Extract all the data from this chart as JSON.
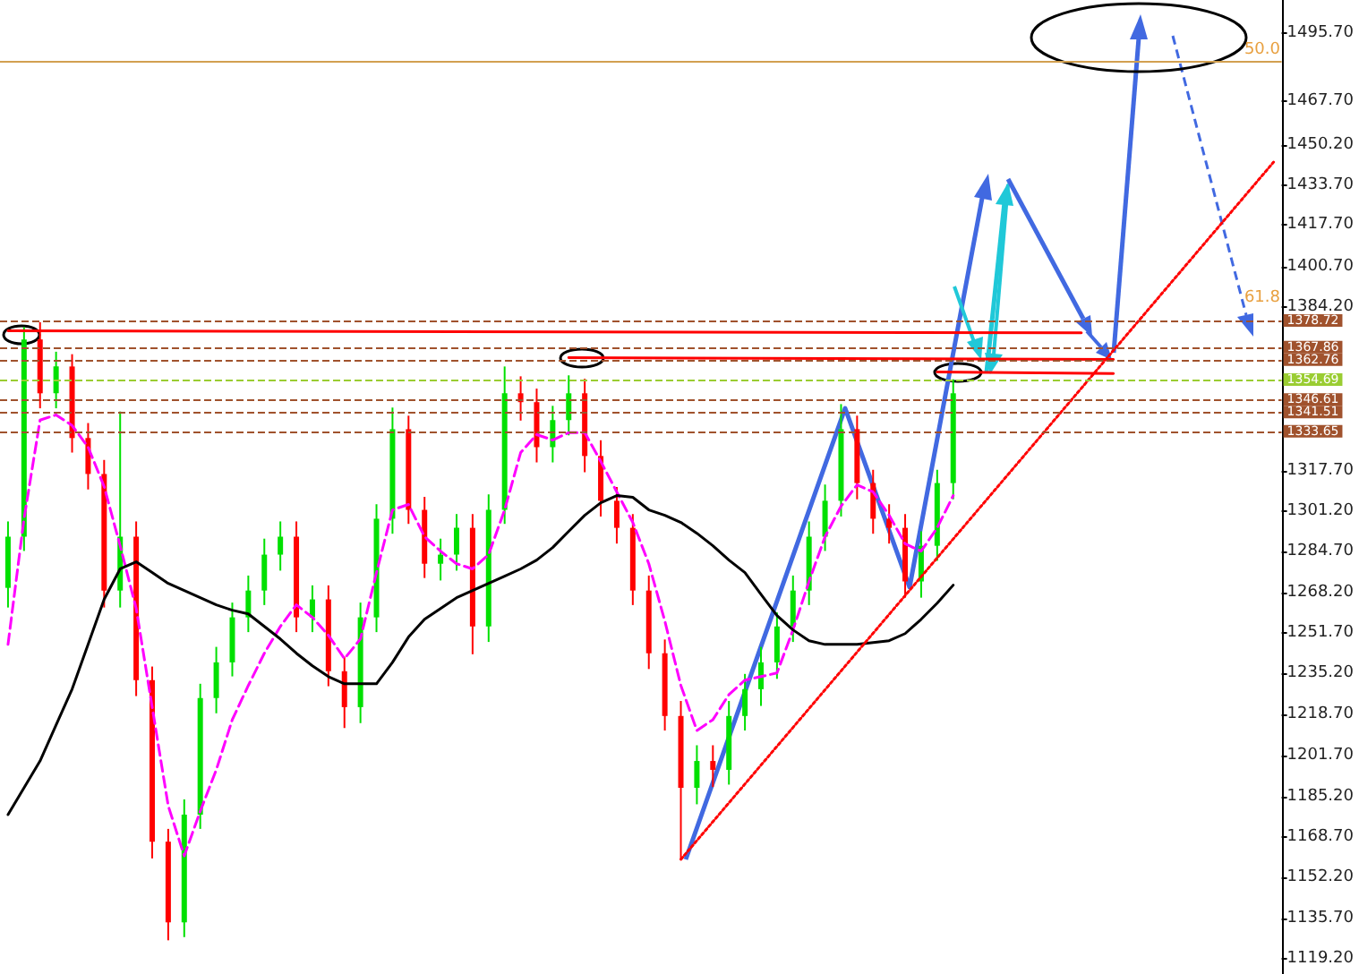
{
  "chart_data": {
    "type": "candlestick",
    "tick_labels": "y",
    "grid": false,
    "categories": [
      null,
      null,
      null,
      null,
      null,
      null,
      null,
      null,
      null,
      null,
      null,
      null,
      null,
      null,
      null,
      null,
      null,
      null,
      null,
      null,
      null,
      null,
      null,
      null,
      null,
      null,
      null,
      null,
      null,
      null,
      null,
      null,
      null,
      null,
      null,
      null,
      null,
      null,
      null,
      null,
      null,
      null,
      null,
      null,
      null,
      null,
      null,
      null,
      null,
      null,
      null,
      null,
      null,
      null,
      null,
      null,
      null,
      null,
      null,
      null,
      null,
      null,
      null,
      null,
      null,
      null,
      null,
      null,
      null,
      null,
      null,
      null,
      null,
      null,
      null,
      null,
      null,
      null,
      null,
      null
    ],
    "ohlc": [
      [
        1270.0,
        1297.0,
        1262.0,
        1290.8
      ],
      [
        1290.8,
        1376.0,
        1285.0,
        1371.0
      ],
      [
        1371.0,
        1378.0,
        1343.0,
        1349.1
      ],
      [
        1349.1,
        1366.0,
        1343.0,
        1360.0
      ],
      [
        1360.0,
        1365.0,
        1325.0,
        1330.9
      ],
      [
        1330.9,
        1337.0,
        1310.0,
        1316.3
      ],
      [
        1316.3,
        1322.0,
        1262.0,
        1268.9
      ],
      [
        1268.9,
        1341.7,
        1262.0,
        1290.8
      ],
      [
        1290.8,
        1297.0,
        1226.0,
        1232.5
      ],
      [
        1232.5,
        1238.0,
        1160.0,
        1166.8
      ],
      [
        1166.8,
        1172.0,
        1126.7,
        1134.0
      ],
      [
        1134.0,
        1184.0,
        1128.0,
        1177.8
      ],
      [
        1177.8,
        1231.0,
        1172.0,
        1225.2
      ],
      [
        1225.2,
        1246.0,
        1219.0,
        1239.7
      ],
      [
        1239.7,
        1264.0,
        1234.0,
        1258.0
      ],
      [
        1258.0,
        1275.0,
        1252.0,
        1268.9
      ],
      [
        1268.9,
        1290.0,
        1263.0,
        1283.5
      ],
      [
        1283.5,
        1297.0,
        1277.0,
        1290.8
      ],
      [
        1290.8,
        1297.0,
        1252.0,
        1258.0
      ],
      [
        1258.0,
        1271.0,
        1252.0,
        1265.3
      ],
      [
        1265.3,
        1271.0,
        1230.0,
        1236.1
      ],
      [
        1236.1,
        1242.0,
        1213.0,
        1221.5
      ],
      [
        1221.5,
        1264.0,
        1215.0,
        1258.0
      ],
      [
        1258.0,
        1304.0,
        1252.0,
        1298.1
      ],
      [
        1298.1,
        1343.3,
        1292.0,
        1334.5
      ],
      [
        1334.5,
        1340.0,
        1296.0,
        1301.7
      ],
      [
        1301.7,
        1307.0,
        1274.0,
        1279.8
      ],
      [
        1279.8,
        1290.0,
        1273.0,
        1283.5
      ],
      [
        1283.5,
        1300.0,
        1277.0,
        1294.4
      ],
      [
        1294.4,
        1300.0,
        1243.0,
        1254.3
      ],
      [
        1254.3,
        1308.0,
        1248.0,
        1301.7
      ],
      [
        1301.7,
        1360.0,
        1296.0,
        1349.1
      ],
      [
        1349.1,
        1356.0,
        1338.0,
        1345.5
      ],
      [
        1345.5,
        1351.0,
        1321.0,
        1327.2
      ],
      [
        1327.2,
        1344.0,
        1321.0,
        1338.2
      ],
      [
        1338.2,
        1356.4,
        1332.0,
        1349.1
      ],
      [
        1349.1,
        1355.0,
        1317.0,
        1323.6
      ],
      [
        1323.6,
        1330.0,
        1299.0,
        1305.4
      ],
      [
        1305.4,
        1311.0,
        1288.0,
        1294.4
      ],
      [
        1294.4,
        1300.0,
        1263.0,
        1268.9
      ],
      [
        1268.9,
        1275.0,
        1237.0,
        1243.4
      ],
      [
        1243.4,
        1249.0,
        1212.0,
        1217.9
      ],
      [
        1217.9,
        1224.0,
        1159.6,
        1188.7
      ],
      [
        1188.7,
        1206.0,
        1182.0,
        1199.6
      ],
      [
        1199.6,
        1206.0,
        1189.0,
        1196.0
      ],
      [
        1196.0,
        1224.0,
        1190.0,
        1217.9
      ],
      [
        1217.9,
        1235.0,
        1212.0,
        1228.8
      ],
      [
        1228.8,
        1246.0,
        1222.0,
        1239.7
      ],
      [
        1239.7,
        1260.0,
        1233.0,
        1254.3
      ],
      [
        1254.3,
        1275.0,
        1248.0,
        1268.9
      ],
      [
        1268.9,
        1297.0,
        1263.0,
        1290.8
      ],
      [
        1290.8,
        1312.0,
        1285.0,
        1305.4
      ],
      [
        1305.4,
        1344.7,
        1299.0,
        1334.5
      ],
      [
        1334.5,
        1340.0,
        1306.0,
        1312.6
      ],
      [
        1312.6,
        1318.0,
        1292.0,
        1298.1
      ],
      [
        1298.1,
        1304.0,
        1288.0,
        1294.4
      ],
      [
        1294.4,
        1300.0,
        1266.0,
        1272.6
      ],
      [
        1272.6,
        1293.0,
        1266.0,
        1287.1
      ],
      [
        1287.1,
        1318.0,
        1281.0,
        1312.6
      ],
      [
        1312.6,
        1354.8,
        1306.0,
        1349.1
      ],
      null,
      null,
      null,
      null,
      null,
      null,
      null,
      null,
      null,
      null,
      null,
      null,
      null,
      null,
      null,
      null,
      null,
      null,
      null,
      null
    ],
    "series": [
      {
        "type": "line",
        "color": "#ff00ff",
        "line_style": "dashed",
        "values": [
          1247.0,
          1298.1,
          1338.2,
          1340.3,
          1336.0,
          1327.2,
          1311.2,
          1287.1,
          1261.6,
          1221.5,
          1181.4,
          1161.0,
          1179.2,
          1196.0,
          1216.4,
          1230.3,
          1243.4,
          1254.3,
          1263.1,
          1258.0,
          1250.7,
          1241.2,
          1249.2,
          1276.2,
          1301.7,
          1303.9,
          1290.8,
          1284.9,
          1279.8,
          1277.7,
          1283.5,
          1301.7,
          1325.0,
          1332.3,
          1330.1,
          1333.1,
          1333.1,
          1321.4,
          1309.0,
          1296.6,
          1279.8,
          1256.5,
          1230.3,
          1212.0,
          1216.4,
          1226.6,
          1232.5,
          1233.9,
          1235.4,
          1252.9,
          1272.6,
          1290.8,
          1303.2,
          1311.9,
          1309.0,
          1299.5,
          1287.9,
          1284.9,
          1294.4,
          1307.5,
          null,
          null,
          null,
          null,
          null,
          null,
          null,
          null,
          null,
          null,
          null,
          null,
          null,
          null,
          null,
          null,
          null,
          null,
          null,
          null
        ]
      },
      {
        "type": "line",
        "color": "#000000",
        "line_style": "solid",
        "values": [
          1177.8,
          1188.7,
          1199.6,
          1214.2,
          1228.8,
          1247.0,
          1265.3,
          1277.7,
          1280.6,
          1276.2,
          1271.8,
          1268.9,
          1266.0,
          1263.1,
          1260.9,
          1259.4,
          1254.3,
          1249.2,
          1243.4,
          1238.3,
          1233.9,
          1231.0,
          1231.0,
          1231.0,
          1239.7,
          1250.0,
          1257.2,
          1261.6,
          1266.0,
          1268.9,
          1271.8,
          1274.7,
          1277.7,
          1281.3,
          1286.4,
          1293.0,
          1299.5,
          1304.6,
          1307.5,
          1306.8,
          1301.7,
          1299.5,
          1296.6,
          1292.2,
          1287.1,
          1281.3,
          1276.2,
          1267.4,
          1258.7,
          1252.9,
          1248.5,
          1247.0,
          1247.0,
          1247.0,
          1247.8,
          1248.5,
          1251.4,
          1257.2,
          1263.8,
          1271.1,
          null,
          null,
          null,
          null,
          null,
          null,
          null,
          null,
          null,
          null,
          null,
          null,
          null,
          null,
          null,
          null,
          null,
          null,
          null,
          null
        ]
      },
      {
        "type": "line",
        "color": "#ff0000",
        "line_style": "solid",
        "values": [
          1374.5,
          null,
          null,
          null,
          null,
          null,
          null,
          null,
          null,
          null,
          null,
          null,
          null,
          null,
          null,
          null,
          null,
          null,
          null,
          null,
          null,
          null,
          null,
          null,
          null,
          null,
          null,
          null,
          null,
          null,
          null,
          null,
          null,
          null,
          null,
          null,
          null,
          null,
          null,
          null,
          null,
          null,
          null,
          null,
          null,
          null,
          null,
          null,
          null,
          null,
          null,
          null,
          null,
          null,
          null,
          null,
          null,
          null,
          null,
          null,
          null,
          null,
          null,
          null,
          null,
          null,
          null,
          1373.7,
          null,
          null,
          null,
          null,
          null,
          null,
          null,
          null,
          null,
          null,
          null,
          null
        ]
      },
      {
        "type": "line",
        "color": "#ff0000",
        "line_style": "solid",
        "values": [
          null,
          null,
          null,
          null,
          null,
          null,
          null,
          null,
          null,
          null,
          null,
          null,
          null,
          null,
          null,
          null,
          null,
          null,
          null,
          null,
          null,
          null,
          null,
          null,
          null,
          null,
          null,
          null,
          null,
          null,
          null,
          null,
          null,
          null,
          null,
          1363.6,
          null,
          null,
          null,
          null,
          null,
          null,
          null,
          null,
          null,
          null,
          null,
          null,
          null,
          null,
          null,
          null,
          null,
          null,
          null,
          null,
          null,
          null,
          null,
          null,
          null,
          null,
          null,
          null,
          null,
          null,
          null,
          null,
          null,
          1362.9,
          null,
          null,
          null,
          null,
          null,
          null,
          null,
          null,
          null,
          null
        ]
      },
      {
        "type": "line",
        "color": "#ff0000",
        "line_style": "solid",
        "values": [
          null,
          null,
          null,
          null,
          null,
          null,
          null,
          null,
          null,
          null,
          null,
          null,
          null,
          null,
          null,
          null,
          null,
          null,
          null,
          null,
          null,
          null,
          null,
          null,
          null,
          null,
          null,
          null,
          null,
          null,
          null,
          null,
          null,
          null,
          null,
          null,
          null,
          null,
          null,
          null,
          null,
          null,
          null,
          null,
          null,
          null,
          null,
          null,
          null,
          null,
          null,
          null,
          null,
          null,
          null,
          null,
          null,
          null,
          1357.8,
          null,
          null,
          null,
          null,
          null,
          null,
          null,
          null,
          null,
          null,
          1357.1,
          null,
          null,
          null,
          null,
          null,
          null,
          null,
          null,
          null,
          null
        ]
      },
      {
        "type": "line",
        "color": "#ff0000",
        "line_style": "dotted",
        "values": [
          null,
          null,
          null,
          null,
          null,
          null,
          null,
          null,
          null,
          null,
          null,
          null,
          null,
          null,
          null,
          null,
          null,
          null,
          null,
          null,
          null,
          null,
          null,
          null,
          null,
          null,
          null,
          null,
          null,
          null,
          null,
          null,
          null,
          null,
          null,
          null,
          null,
          null,
          null,
          null,
          null,
          null,
          1159.6,
          null,
          null,
          null,
          null,
          null,
          null,
          null,
          null,
          null,
          null,
          null,
          null,
          null,
          null,
          null,
          null,
          null,
          null,
          null,
          null,
          null,
          null,
          null,
          null,
          null,
          null,
          null,
          null,
          null,
          null,
          null,
          null,
          null,
          null,
          null,
          null,
          1443.1
        ]
      }
    ],
    "ylim": [
      1113,
      1509
    ],
    "yticks": [
      {
        "value": 1119.2,
        "label": "1119.20"
      },
      {
        "value": 1135.7,
        "label": "1135.70"
      },
      {
        "value": 1152.2,
        "label": "1152.20"
      },
      {
        "value": 1168.7,
        "label": "1168.70"
      },
      {
        "value": 1185.2,
        "label": "1185.20"
      },
      {
        "value": 1201.7,
        "label": "1201.70"
      },
      {
        "value": 1218.7,
        "label": "1218.70"
      },
      {
        "value": 1235.2,
        "label": "1235.20"
      },
      {
        "value": 1251.7,
        "label": "1251.70"
      },
      {
        "value": 1268.2,
        "label": "1268.20"
      },
      {
        "value": 1284.7,
        "label": "1284.70"
      },
      {
        "value": 1301.2,
        "label": "1301.20"
      },
      {
        "value": 1317.7,
        "label": "1317.70"
      },
      {
        "value": 1384.2,
        "label": "1384.20"
      },
      {
        "value": 1400.7,
        "label": "1400.70"
      },
      {
        "value": 1417.7,
        "label": "1417.70"
      },
      {
        "value": 1433.7,
        "label": "1433.70"
      },
      {
        "value": 1450.2,
        "label": "1450.20"
      },
      {
        "value": 1467.7,
        "label": "1467.70"
      },
      {
        "value": 1495.7,
        "label": "1495.70"
      }
    ],
    "ref_lines": [
      {
        "axis": "y",
        "value": 1483.8,
        "color": "#d2a050",
        "line_style": "solid"
      },
      {
        "axis": "y",
        "value": 1378.72,
        "label": "1378.72",
        "color": "#a0522d",
        "line_style": "dashed"
      },
      {
        "axis": "y",
        "value": 1367.86,
        "label": "1367.86",
        "color": "#a0522d",
        "line_style": "dashed"
      },
      {
        "axis": "y",
        "value": 1362.76,
        "label": "1362.76",
        "color": "#a0522d",
        "line_style": "dashed"
      },
      {
        "axis": "y",
        "value": 1354.69,
        "label": "1354.69",
        "color": "#9acd32",
        "line_style": "dashed"
      },
      {
        "axis": "y",
        "value": 1346.61,
        "label": "1346.61",
        "color": "#a0522d",
        "line_style": "dashed"
      },
      {
        "axis": "y",
        "value": 1341.51,
        "label": "1341.51",
        "color": "#a0522d",
        "line_style": "dashed"
      },
      {
        "axis": "y",
        "value": 1333.65,
        "label": "1333.65",
        "color": "#a0522d",
        "line_style": "dashed"
      }
    ],
    "annotations": [
      {
        "text": "50.0",
        "y": 1483.8
      },
      "61.8"
    ]
  }
}
